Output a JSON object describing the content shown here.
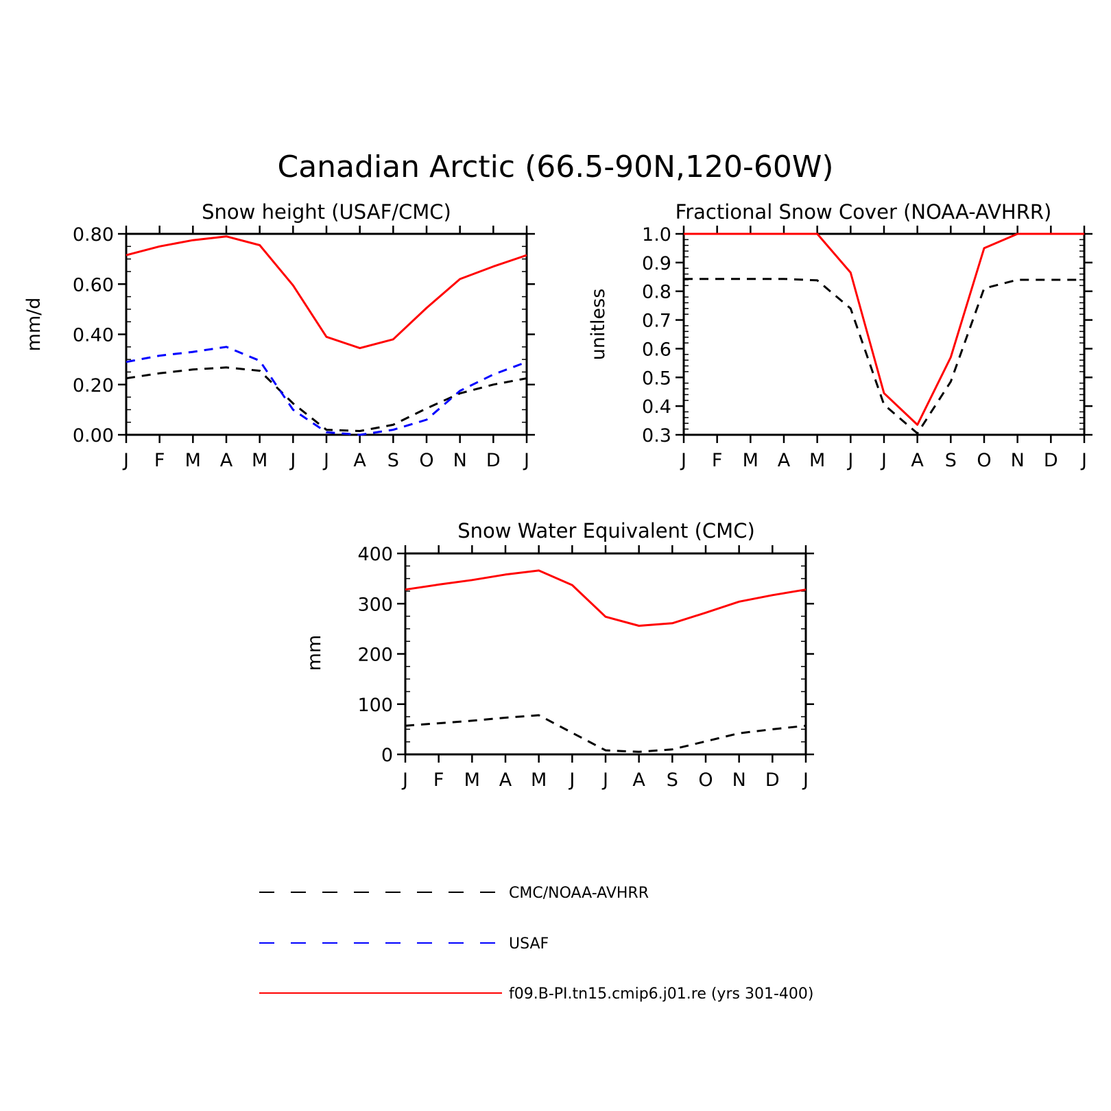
{
  "title": "Canadian Arctic (66.5-90N,120-60W)",
  "colors": {
    "obs": "#000000",
    "usaf": "#0000ff",
    "model": "#ff0000"
  },
  "chart_data": [
    {
      "type": "line",
      "title": "Snow height (USAF/CMC)",
      "xlabel": "",
      "ylabel": "mm/d",
      "categories": [
        "J",
        "F",
        "M",
        "A",
        "M",
        "J",
        "J",
        "A",
        "S",
        "O",
        "N",
        "D",
        "J"
      ],
      "ylim": [
        0,
        0.8
      ],
      "yticks": [
        "0.00",
        "0.20",
        "0.40",
        "0.60",
        "0.80"
      ],
      "ytick_values": [
        0,
        0.2,
        0.4,
        0.6,
        0.8
      ],
      "grid": false,
      "series": [
        {
          "key": "obs",
          "style": "dashed",
          "values": [
            0.225,
            0.245,
            0.26,
            0.268,
            0.255,
            0.125,
            0.02,
            0.015,
            0.04,
            0.105,
            0.165,
            0.2,
            0.225
          ]
        },
        {
          "key": "usaf",
          "style": "dashed",
          "values": [
            0.29,
            0.315,
            0.33,
            0.35,
            0.295,
            0.1,
            0.01,
            0.0,
            0.02,
            0.06,
            0.175,
            0.24,
            0.29
          ]
        },
        {
          "key": "model",
          "style": "solid",
          "values": [
            0.715,
            0.75,
            0.775,
            0.79,
            0.755,
            0.595,
            0.39,
            0.345,
            0.38,
            0.505,
            0.62,
            0.67,
            0.715
          ]
        }
      ]
    },
    {
      "type": "line",
      "title": "Fractional Snow Cover (NOAA-AVHRR)",
      "xlabel": "",
      "ylabel": "unitless",
      "categories": [
        "J",
        "F",
        "M",
        "A",
        "M",
        "J",
        "J",
        "A",
        "S",
        "O",
        "N",
        "D",
        "J"
      ],
      "ylim": [
        0.3,
        1.0
      ],
      "yticks": [
        "0.3",
        "0.4",
        "0.5",
        "0.6",
        "0.7",
        "0.8",
        "0.9",
        "1.0"
      ],
      "ytick_values": [
        0.3,
        0.4,
        0.5,
        0.6,
        0.7,
        0.8,
        0.9,
        1.0
      ],
      "grid": false,
      "series": [
        {
          "key": "obs",
          "style": "dashed",
          "values": [
            0.843,
            0.843,
            0.843,
            0.843,
            0.838,
            0.74,
            0.405,
            0.305,
            0.485,
            0.81,
            0.84,
            0.84,
            0.84
          ]
        },
        {
          "key": "model",
          "style": "solid",
          "values": [
            1.0,
            1.0,
            1.0,
            1.0,
            1.0,
            0.865,
            0.445,
            0.335,
            0.57,
            0.95,
            1.0,
            1.0,
            1.0
          ]
        }
      ]
    },
    {
      "type": "line",
      "title": "Snow Water Equivalent (CMC)",
      "xlabel": "",
      "ylabel": "mm",
      "categories": [
        "J",
        "F",
        "M",
        "A",
        "M",
        "J",
        "J",
        "A",
        "S",
        "O",
        "N",
        "D",
        "J"
      ],
      "ylim": [
        0,
        400
      ],
      "yticks": [
        "0",
        "100",
        "200",
        "300",
        "400"
      ],
      "ytick_values": [
        0,
        100,
        200,
        300,
        400
      ],
      "grid": false,
      "series": [
        {
          "key": "obs",
          "style": "dashed",
          "values": [
            57,
            62,
            67,
            73,
            78,
            43,
            8,
            5,
            10,
            26,
            42,
            50,
            57
          ]
        },
        {
          "key": "model",
          "style": "solid",
          "values": [
            328,
            338,
            347,
            358,
            366,
            337,
            274,
            256,
            261,
            282,
            304,
            317,
            328
          ]
        }
      ]
    }
  ],
  "legend": [
    {
      "key": "obs",
      "style": "dashed",
      "label": "CMC/NOAA-AVHRR"
    },
    {
      "key": "usaf",
      "style": "dashed",
      "label": "USAF"
    },
    {
      "key": "model",
      "style": "solid",
      "label": "f09.B-PI.tn15.cmip6.j01.re (yrs 301-400)"
    }
  ]
}
